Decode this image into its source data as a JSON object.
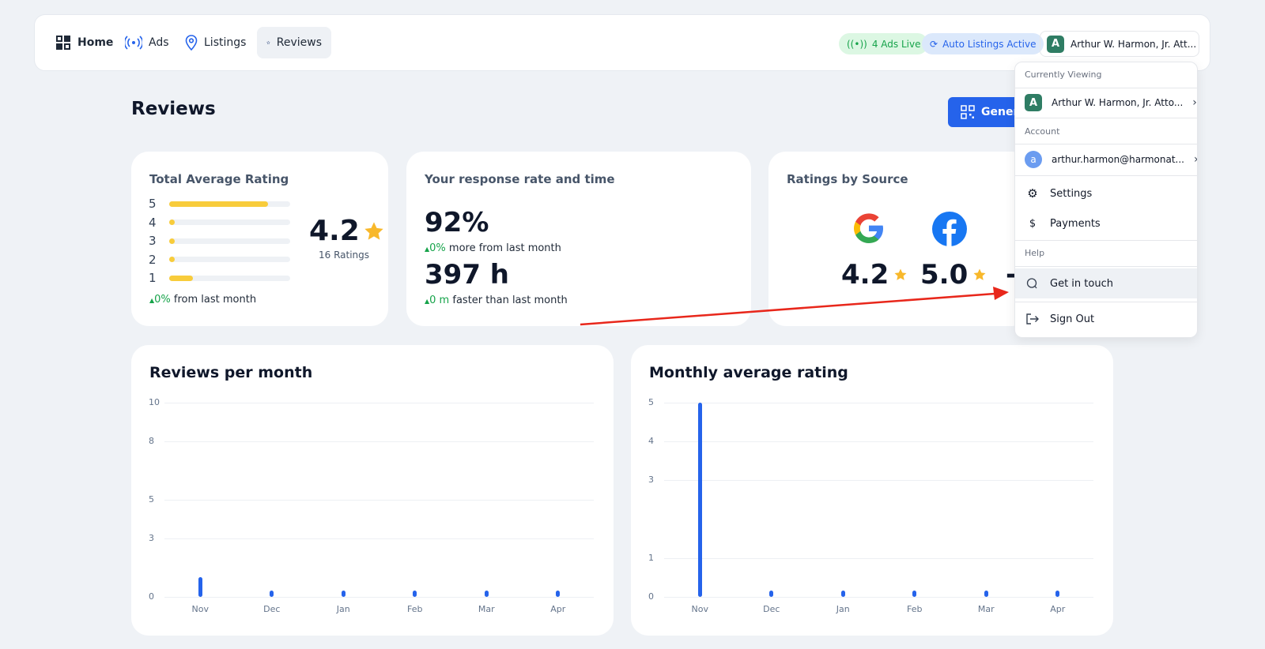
{
  "nav": {
    "home": "Home",
    "ads": "Ads",
    "listings": "Listings",
    "reviews": "Reviews"
  },
  "status": {
    "ads_live": "4 Ads Live",
    "auto_listings": "Auto Listings Active"
  },
  "account_button": {
    "initial": "A",
    "name": "Arthur W. Harmon, Jr. Att..."
  },
  "page": {
    "title": "Reviews",
    "generate_button": "Genera"
  },
  "total_rating": {
    "title": "Total Average Rating",
    "rows": [
      {
        "stars": "5",
        "fraction": 0.82
      },
      {
        "stars": "4",
        "fraction": 0.05
      },
      {
        "stars": "3",
        "fraction": 0.05
      },
      {
        "stars": "2",
        "fraction": 0.05
      },
      {
        "stars": "1",
        "fraction": 0.2
      }
    ],
    "average": "4.2",
    "count": "16 Ratings",
    "change": "0%",
    "change_text": "from last month"
  },
  "response": {
    "title": "Your response rate and time",
    "rate": "92%",
    "rate_change": "0%",
    "rate_text": "more from last month",
    "time": "397 h",
    "time_change": "0 m",
    "time_text": "faster than last month"
  },
  "sources": {
    "title": "Ratings by Source",
    "google": "4.2",
    "facebook": "5.0",
    "other": "-"
  },
  "dropdown": {
    "currently_viewing": "Currently Viewing",
    "viewing_initial": "A",
    "viewing_name": "Arthur W. Harmon, Jr. Atto...",
    "account": "Account",
    "account_initial": "a",
    "account_email": "arthur.harmon@harmonat...",
    "settings": "Settings",
    "payments": "Payments",
    "help": "Help",
    "get_in_touch": "Get in touch",
    "sign_out": "Sign Out"
  },
  "colors": {
    "primary": "#2563eb",
    "star": "#f8cc3b",
    "success": "#16a34a",
    "annotation": "#e8271b"
  },
  "chart_data": [
    {
      "type": "bar",
      "title": "Reviews per month",
      "categories": [
        "Nov",
        "Dec",
        "Jan",
        "Feb",
        "Mar",
        "Apr"
      ],
      "values": [
        1,
        0,
        0,
        0,
        0,
        0
      ],
      "ylim": [
        0,
        10
      ],
      "yticks": [
        "0",
        "3",
        "5",
        "8",
        "10"
      ],
      "grid": true
    },
    {
      "type": "bar",
      "title": "Monthly average rating",
      "categories": [
        "Nov",
        "Dec",
        "Jan",
        "Feb",
        "Mar",
        "Apr"
      ],
      "values": [
        5,
        0,
        0,
        0,
        0,
        0
      ],
      "ylim": [
        0,
        5
      ],
      "yticks": [
        "0",
        "1",
        "3",
        "4",
        "5"
      ],
      "grid": true
    }
  ]
}
